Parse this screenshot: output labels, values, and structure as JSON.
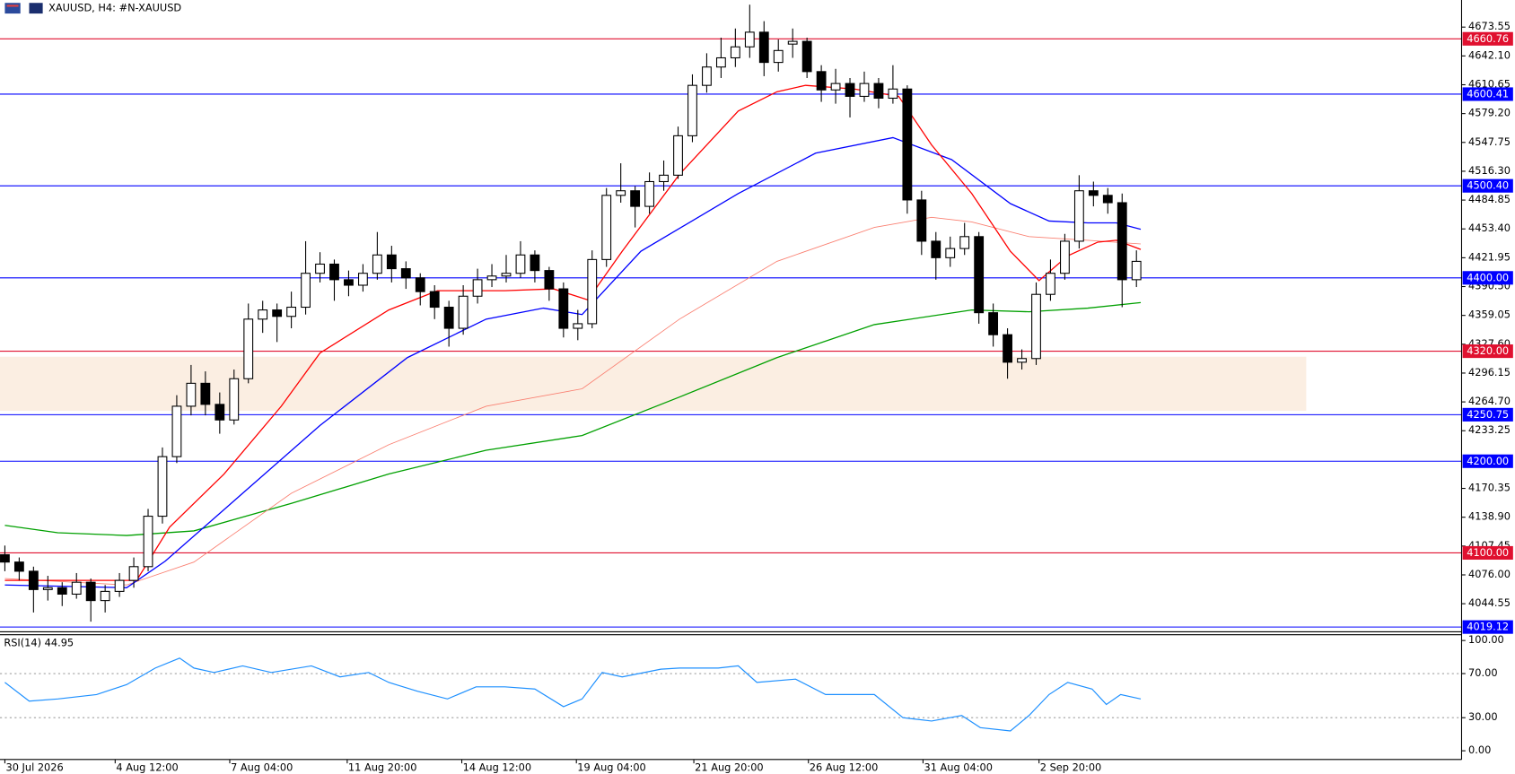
{
  "chart_data": [
    {
      "type": "candlestick",
      "title": "XAUUSD, H4:  #N-XAUUSD",
      "open": [
        4098,
        4090,
        4080,
        4060,
        4062,
        4055,
        4068,
        4048,
        4058,
        4070,
        4085,
        4140,
        4205,
        4260,
        4285,
        4262,
        4245,
        4290,
        4355,
        4365,
        4358,
        4368,
        4405,
        4415,
        4398,
        4392,
        4405,
        4425,
        4410,
        4400,
        4385,
        4368,
        4345,
        4380,
        4398,
        4402,
        4405,
        4425,
        4408,
        4388,
        4345,
        4350,
        4420,
        4490,
        4495,
        4478,
        4505,
        4512,
        4555,
        4610,
        4630,
        4640,
        4652,
        4668,
        4635,
        4655,
        4658,
        4625,
        4605,
        4612,
        4598,
        4612,
        4596,
        4606,
        4485,
        4440,
        4422,
        4432,
        4445,
        4362,
        4338,
        4308,
        4312,
        4382,
        4405,
        4440,
        4495,
        4490,
        4482,
        4398
      ],
      "high": [
        4108,
        4095,
        4085,
        4075,
        4068,
        4078,
        4072,
        4065,
        4078,
        4095,
        4148,
        4215,
        4272,
        4305,
        4298,
        4275,
        4300,
        4372,
        4375,
        4372,
        4385,
        4440,
        4428,
        4420,
        4408,
        4415,
        4450,
        4435,
        4418,
        4405,
        4392,
        4375,
        4392,
        4410,
        4415,
        4425,
        4440,
        4430,
        4412,
        4395,
        4365,
        4430,
        4498,
        4525,
        4500,
        4515,
        4528,
        4565,
        4622,
        4645,
        4662,
        4672,
        4698,
        4680,
        4660,
        4672,
        4662,
        4632,
        4628,
        4618,
        4625,
        4618,
        4632,
        4610,
        4495,
        4450,
        4445,
        4460,
        4450,
        4372,
        4345,
        4322,
        4395,
        4420,
        4448,
        4512,
        4505,
        4498,
        4492,
        4430
      ],
      "low": [
        4080,
        4070,
        4035,
        4048,
        4042,
        4050,
        4025,
        4035,
        4052,
        4062,
        4080,
        4132,
        4198,
        4250,
        4250,
        4230,
        4240,
        4285,
        4340,
        4330,
        4345,
        4360,
        4395,
        4375,
        4380,
        4385,
        4398,
        4395,
        4388,
        4370,
        4355,
        4325,
        4338,
        4372,
        4390,
        4395,
        4400,
        4395,
        4375,
        4335,
        4332,
        4345,
        4412,
        4482,
        4455,
        4470,
        4495,
        4508,
        4548,
        4602,
        4618,
        4630,
        4640,
        4620,
        4625,
        4640,
        4618,
        4592,
        4590,
        4575,
        4592,
        4585,
        4590,
        4470,
        4425,
        4398,
        4412,
        4425,
        4350,
        4325,
        4290,
        4300,
        4305,
        4375,
        4398,
        4432,
        4478,
        4470,
        4368,
        4390
      ],
      "close": [
        4090,
        4080,
        4060,
        4062,
        4055,
        4068,
        4048,
        4058,
        4070,
        4085,
        4140,
        4205,
        4260,
        4285,
        4262,
        4245,
        4290,
        4355,
        4365,
        4358,
        4368,
        4405,
        4415,
        4398,
        4392,
        4405,
        4425,
        4410,
        4400,
        4385,
        4368,
        4345,
        4380,
        4398,
        4402,
        4405,
        4425,
        4408,
        4388,
        4345,
        4350,
        4420,
        4490,
        4495,
        4478,
        4505,
        4512,
        4555,
        4610,
        4630,
        4640,
        4652,
        4668,
        4635,
        4648,
        4658,
        4625,
        4605,
        4612,
        4598,
        4612,
        4596,
        4606,
        4485,
        4440,
        4422,
        4432,
        4445,
        4362,
        4338,
        4308,
        4312,
        4382,
        4405,
        4440,
        4495,
        4490,
        4482,
        4398,
        4418
      ],
      "xlim": [
        -0.34,
        101.7
      ],
      "ylim": [
        4015.0,
        4703.1
      ],
      "yticks": [
        4673.55,
        {
          "value": 4642.1,
          "label": "4642.10"
        },
        4610.65,
        {
          "value": 4579.2,
          "label": "4579.20"
        },
        4547.75,
        {
          "value": 4516.3,
          "label": "4516.30"
        },
        4484.85,
        {
          "value": 4453.4,
          "label": "4453.40"
        },
        4421.95,
        {
          "value": 4390.5,
          "label": "4390.50"
        },
        4359.05,
        {
          "value": 4327.6,
          "label": "4327.60"
        },
        4296.15,
        {
          "value": 4264.7,
          "label": "4264.70"
        },
        4233.25,
        4170.35,
        {
          "value": 4138.9,
          "label": "4138.90"
        },
        4107.45,
        {
          "value": 4076.0,
          "label": "4076.00"
        },
        4044.55
      ],
      "series": [
        {
          "color": "#00a000",
          "x": [
            0,
            3.7,
            8.5,
            13.2,
            20.0,
            26.8,
            33.6,
            40.3,
            47.1,
            53.9,
            60.7,
            67.5,
            71.5,
            75.6,
            79.3
          ],
          "values": [
            4130,
            4122,
            4119,
            4124,
            4154,
            4186,
            4212,
            4228,
            4270,
            4313,
            4349,
            4365,
            4363,
            4367,
            4373
          ]
        },
        {
          "color": "#fa8072",
          "x": [
            0,
            8.5,
            13.2,
            20.0,
            26.8,
            33.6,
            40.3,
            47.1,
            53.9,
            60.7,
            64.7,
            67.5,
            71.5,
            75.6,
            79.3
          ],
          "values": [
            4072,
            4065,
            4090,
            4165,
            4218,
            4260,
            4279,
            4355,
            4418,
            4455,
            4466,
            4461,
            4445,
            4441,
            4437
          ]
        },
        {
          "color": "#0000ff",
          "x": [
            0,
            8.5,
            11.2,
            16.6,
            22.0,
            28.1,
            33.6,
            37.6,
            40.3,
            44.4,
            51.2,
            56.6,
            62.0,
            66.1,
            70.2,
            72.9,
            75.6,
            77.6,
            79.3
          ],
          "values": [
            4065,
            4062,
            4091,
            4165,
            4239,
            4313,
            4355,
            4367,
            4360,
            4429,
            4492,
            4536,
            4553,
            4529,
            4481,
            4462,
            4460,
            4460,
            4453
          ]
        },
        {
          "color": "#ff0000",
          "x": [
            0,
            9.2,
            11.5,
            15.3,
            19.3,
            22.0,
            26.8,
            30.2,
            34.9,
            38.3,
            40.7,
            43.1,
            47.1,
            51.2,
            53.9,
            55.9,
            59.3,
            62.4,
            64.7,
            67.5,
            70.2,
            72.2,
            74.2,
            76.3,
            77.6,
            79.3
          ],
          "values": [
            4070,
            4070,
            4128,
            4186,
            4260,
            4318,
            4365,
            4386,
            4386,
            4388,
            4376,
            4429,
            4513,
            4582,
            4603,
            4610,
            4606,
            4598,
            4545,
            4492,
            4429,
            4397,
            4424,
            4439,
            4441,
            4431
          ]
        }
      ],
      "levels": [
        {
          "value": 4660.76,
          "color": "#e0102f"
        },
        {
          "value": 4600.41,
          "color": "#0000ff"
        },
        {
          "value": 4500.4,
          "label": "4500.40",
          "color": "#0000ff"
        },
        {
          "value": 4400.0,
          "label": "4400.00",
          "color": "#0000ff"
        },
        {
          "value": 4320.0,
          "label": "4320.00",
          "color": "#e0102f"
        },
        {
          "value": 4250.75,
          "color": "#0000ff"
        },
        {
          "value": 4200.0,
          "label": "4200.00",
          "color": "#0000ff"
        },
        {
          "value": 4100.0,
          "label": "4100.00",
          "color": "#e0102f"
        },
        {
          "value": 4019.12,
          "color": "#0000ff"
        }
      ],
      "zone": {
        "from": 4255,
        "to": 4314,
        "color": "#fbeee2"
      }
    },
    {
      "type": "line",
      "title": "RSI(14) 44.95",
      "color": "#1e90ff",
      "x": [
        0,
        1.7,
        3.7,
        6.4,
        8.5,
        10.5,
        12.2,
        13.2,
        14.6,
        16.6,
        18.6,
        21.4,
        23.4,
        25.4,
        26.8,
        28.8,
        30.9,
        32.9,
        34.9,
        37.0,
        39.0,
        40.3,
        41.7,
        43.1,
        45.8,
        47.1,
        49.8,
        51.2,
        52.5,
        55.2,
        57.3,
        60.7,
        62.7,
        64.7,
        66.8,
        68.1,
        70.2,
        71.5,
        72.9,
        74.2,
        75.9,
        76.9,
        77.9,
        79.3
      ],
      "values": [
        62,
        45,
        47,
        51,
        60,
        75,
        84,
        75,
        71,
        77,
        71,
        77,
        67,
        71,
        62,
        54,
        47,
        58,
        58,
        56,
        40,
        47,
        71,
        67,
        74,
        75,
        75,
        77,
        62,
        65,
        51,
        51,
        30,
        27,
        32,
        21,
        18,
        32,
        51,
        62,
        56,
        42,
        51,
        47
      ],
      "xlim": [
        -0.34,
        101.7
      ],
      "ylim": [
        -7.9,
        104.4
      ],
      "yticks": [
        {
          "value": 100,
          "label": "100.00"
        },
        {
          "value": 70,
          "label": "70.00"
        },
        {
          "value": 30,
          "label": "30.00"
        },
        {
          "value": 0,
          "label": "0.00"
        }
      ],
      "levels": [
        70,
        30
      ],
      "xticks": [
        {
          "value": 0,
          "label": "30 Jul 2026"
        },
        {
          "value": 7.7,
          "label": "4 Aug 12:00"
        },
        {
          "value": 15.7,
          "label": "7 Aug 04:00"
        },
        {
          "value": 23.9,
          "label": "11 Aug 20:00"
        },
        {
          "value": 31.9,
          "label": "14 Aug 12:00"
        },
        {
          "value": 39.9,
          "label": "19 Aug 04:00"
        },
        {
          "value": 48.1,
          "label": "21 Aug 20:00"
        },
        {
          "value": 56.1,
          "label": "26 Aug 12:00"
        },
        {
          "value": 64.1,
          "label": "31 Aug 04:00"
        },
        {
          "value": 72.2,
          "label": "2 Sep 20:00"
        }
      ]
    }
  ]
}
